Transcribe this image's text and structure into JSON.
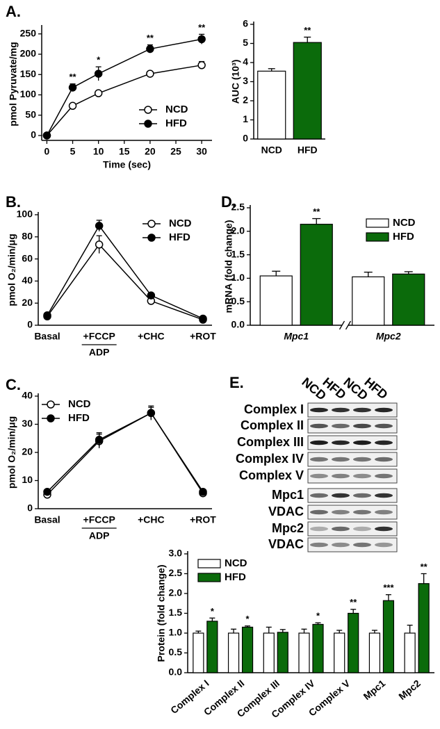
{
  "chart_data": [
    {
      "panel": "A.",
      "type": "line",
      "ylabel": "pmol Pyruvate/mg",
      "xlabel": "Time (sec)",
      "x": [
        0,
        5,
        10,
        20,
        30
      ],
      "xlim": [
        -1,
        32
      ],
      "xticks": [
        0,
        5,
        10,
        15,
        20,
        25,
        30
      ],
      "ylim": [
        -12,
        265
      ],
      "yticks": [
        0,
        50,
        100,
        150,
        200,
        250
      ],
      "legend": "lower right",
      "series": [
        {
          "name": "NCD",
          "color": "#000000",
          "marker_fill": "#ffffff",
          "values": [
            0,
            73,
            104,
            152,
            173
          ],
          "errors": [
            2,
            4,
            6,
            4,
            9
          ]
        },
        {
          "name": "HFD",
          "color": "#000000",
          "marker_fill": "#000000",
          "values": [
            0,
            118,
            152,
            213,
            237
          ],
          "errors": [
            2,
            9,
            17,
            10,
            12
          ],
          "annotations": [
            null,
            "**",
            "*",
            "**",
            "**"
          ]
        }
      ]
    },
    {
      "type": "bar",
      "ylabel": "AUC (10³)",
      "categories": [
        "NCD",
        "HFD"
      ],
      "values": [
        3.55,
        5.05
      ],
      "errors": [
        0.13,
        0.28
      ],
      "colors": [
        "#ffffff",
        "#0b6b0b"
      ],
      "annotations": [
        null,
        "**"
      ],
      "ylim": [
        0,
        6
      ],
      "yticks": [
        0,
        1,
        2,
        3,
        4,
        5,
        6
      ]
    },
    {
      "panel": "B.",
      "type": "line",
      "ylabel": "pmol O₂/min/μg",
      "categories": [
        "Basal",
        "+FCCP",
        "+CHC",
        "+ROT"
      ],
      "category_sublabels": [
        null,
        "ADP",
        null,
        null
      ],
      "ylim": [
        0,
        100
      ],
      "yticks": [
        0,
        20,
        40,
        60,
        80,
        100
      ],
      "legend": "upper right",
      "series": [
        {
          "name": "NCD",
          "color": "#000000",
          "marker_fill": "#ffffff",
          "values": [
            8,
            73,
            22,
            5
          ],
          "errors": [
            1,
            8,
            2,
            1
          ]
        },
        {
          "name": "HFD",
          "color": "#000000",
          "marker_fill": "#000000",
          "values": [
            9,
            90,
            27,
            6
          ],
          "errors": [
            1,
            5,
            2,
            1
          ]
        }
      ]
    },
    {
      "panel": "C.",
      "type": "line",
      "ylabel": "pmol O₂/min/μg",
      "categories": [
        "Basal",
        "+FCCP",
        "+CHC",
        "+ROT"
      ],
      "category_sublabels": [
        null,
        "ADP",
        null,
        null
      ],
      "ylim": [
        0,
        40
      ],
      "yticks": [
        0,
        10,
        20,
        30,
        40
      ],
      "legend": "upper left",
      "series": [
        {
          "name": "NCD",
          "color": "#000000",
          "marker_fill": "#ffffff",
          "values": [
            5,
            24,
            34,
            5.5
          ],
          "errors": [
            0.5,
            2.5,
            2,
            0.5
          ]
        },
        {
          "name": "HFD",
          "color": "#000000",
          "marker_fill": "#000000",
          "values": [
            6,
            24.5,
            34,
            6
          ],
          "errors": [
            0.5,
            2.5,
            2.5,
            0.5
          ]
        }
      ]
    },
    {
      "panel": "D.",
      "type": "bar",
      "ylabel": "mRNA (fold change)",
      "categories": [
        "Mpc1",
        "Mpc2"
      ],
      "category_style": "italic",
      "axis_break": true,
      "ylim": [
        0,
        2.5
      ],
      "yticks": [
        {
          "value": 0,
          "label": "0.0"
        },
        0.5,
        {
          "value": 1,
          "label": "1.0"
        },
        1.5,
        {
          "value": 2,
          "label": "2.0"
        },
        2.5
      ],
      "legend": "upper right",
      "series": [
        {
          "name": "NCD",
          "color": "#ffffff",
          "values": [
            1.05,
            1.03
          ],
          "errors": [
            0.1,
            0.1
          ]
        },
        {
          "name": "HFD",
          "color": "#0b6b0b",
          "values": [
            2.15,
            1.09
          ],
          "errors": [
            0.12,
            0.05
          ],
          "annotations": [
            "**",
            null
          ]
        }
      ]
    },
    {
      "panel": "E.",
      "type": "bar",
      "ylabel": "Protein (fold change)",
      "categories": [
        "Complex I",
        "Complex II",
        "Complex III",
        "Complex IV",
        "Complex V",
        "Mpc1",
        "Mpc2"
      ],
      "ylim": [
        0,
        3
      ],
      "yticks": [
        {
          "value": 0,
          "label": "0.0"
        },
        0.5,
        {
          "value": 1,
          "label": "1.0"
        },
        1.5,
        {
          "value": 2,
          "label": "2.0"
        },
        2.5,
        {
          "value": 3,
          "label": "3.0"
        }
      ],
      "legend": "upper left",
      "series": [
        {
          "name": "NCD",
          "color": "#ffffff",
          "values": [
            1,
            1,
            1,
            1,
            1,
            1,
            1
          ],
          "errors": [
            0.05,
            0.1,
            0.15,
            0.1,
            0.07,
            0.07,
            0.2
          ]
        },
        {
          "name": "HFD",
          "color": "#0b6b0b",
          "values": [
            1.3,
            1.15,
            1.02,
            1.22,
            1.5,
            1.82,
            2.25
          ],
          "errors": [
            0.08,
            0.03,
            0.07,
            0.04,
            0.1,
            0.15,
            0.25
          ],
          "annotations": [
            "*",
            "*",
            null,
            "*",
            "**",
            "***",
            "**"
          ]
        }
      ]
    }
  ],
  "blot": {
    "lanes": [
      "NCD",
      "HFD",
      "NCD",
      "HFD"
    ],
    "rows": [
      "Complex I",
      "Complex II",
      "Complex III",
      "Complex IV",
      "Complex V",
      "Mpc1",
      "VDAC",
      "Mpc2",
      "VDAC"
    ]
  }
}
